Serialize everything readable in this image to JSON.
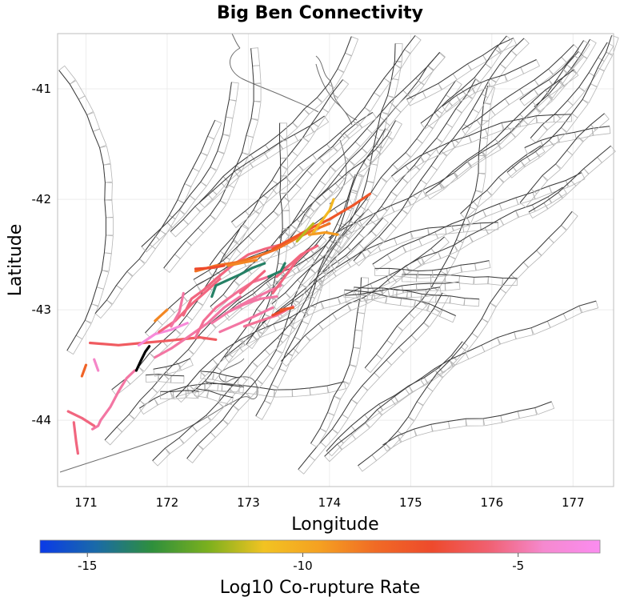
{
  "chart_data": {
    "type": "map",
    "title": "Big Ben Connectivity",
    "xlabel": "Longitude",
    "ylabel": "Latitude",
    "xlim": [
      170.65,
      177.5
    ],
    "ylim": [
      -44.6,
      -40.5
    ],
    "x_ticks": [
      171,
      172,
      173,
      174,
      175,
      176,
      177
    ],
    "y_ticks": [
      -41,
      -42,
      -43,
      -44
    ],
    "x_tick_labels": [
      "171",
      "172",
      "173",
      "174",
      "175",
      "176",
      "177"
    ],
    "y_tick_labels": [
      "-41",
      "-42",
      "-43",
      "-44"
    ],
    "colorbar": {
      "label": "Log10 Co-rupture Rate",
      "range": [
        -16.1,
        -3.1
      ],
      "ticks": [
        -15,
        -10,
        -5
      ],
      "tick_labels": [
        "-15",
        "-10",
        "-5"
      ],
      "colors": [
        "#0a3ae8",
        "#1a6aa8",
        "#2e8f3c",
        "#7bb01e",
        "#f2c322",
        "#f5a021",
        "#f06a25",
        "#ee4a2c",
        "#f06070",
        "#f589cf",
        "#fb8cf0"
      ]
    },
    "source_fault": {
      "name": "Big Ben",
      "color": "#000000",
      "points": [
        [
          171.62,
          -43.55
        ],
        [
          171.67,
          -43.47
        ],
        [
          171.73,
          -43.38
        ],
        [
          171.78,
          -43.33
        ]
      ]
    },
    "ruptures": [
      {
        "log_rate": -6.0,
        "points": [
          [
            171.05,
            -43.3
          ],
          [
            171.4,
            -43.32
          ],
          [
            171.7,
            -43.3
          ],
          [
            172.0,
            -43.28
          ],
          [
            172.4,
            -43.25
          ],
          [
            172.6,
            -43.27
          ]
        ]
      },
      {
        "log_rate": -4.0,
        "points": [
          [
            171.65,
            -43.32
          ],
          [
            171.85,
            -43.22
          ],
          [
            172.05,
            -43.18
          ],
          [
            172.25,
            -43.12
          ]
        ]
      },
      {
        "log_rate": -5.0,
        "points": [
          [
            171.6,
            -43.55
          ],
          [
            171.5,
            -43.62
          ],
          [
            171.4,
            -43.74
          ],
          [
            171.3,
            -43.88
          ],
          [
            171.18,
            -44.0
          ],
          [
            171.15,
            -44.05
          ],
          [
            171.08,
            -44.08
          ]
        ]
      },
      {
        "log_rate": -5.5,
        "points": [
          [
            170.78,
            -43.92
          ],
          [
            170.95,
            -43.98
          ],
          [
            171.1,
            -44.05
          ]
        ]
      },
      {
        "log_rate": -5.5,
        "points": [
          [
            170.85,
            -44.02
          ],
          [
            170.88,
            -44.2
          ],
          [
            170.9,
            -44.3
          ]
        ]
      },
      {
        "log_rate": -8.0,
        "points": [
          [
            171.0,
            -43.5
          ],
          [
            170.95,
            -43.6
          ]
        ]
      },
      {
        "log_rate": -5.0,
        "points": [
          [
            171.85,
            -43.43
          ],
          [
            172.05,
            -43.35
          ],
          [
            172.25,
            -43.25
          ],
          [
            172.5,
            -43.12
          ],
          [
            172.7,
            -42.98
          ],
          [
            172.9,
            -42.88
          ]
        ]
      },
      {
        "log_rate": -5.5,
        "points": [
          [
            171.9,
            -43.2
          ],
          [
            172.1,
            -43.1
          ],
          [
            172.3,
            -42.95
          ],
          [
            172.5,
            -42.82
          ],
          [
            172.65,
            -42.72
          ]
        ]
      },
      {
        "log_rate": -5.5,
        "points": [
          [
            172.2,
            -43.05
          ],
          [
            172.3,
            -42.9
          ],
          [
            172.45,
            -42.82
          ],
          [
            172.6,
            -42.72
          ],
          [
            172.8,
            -42.6
          ],
          [
            173.0,
            -42.5
          ],
          [
            173.2,
            -42.45
          ],
          [
            173.45,
            -42.4
          ]
        ]
      },
      {
        "log_rate": -5.0,
        "points": [
          [
            172.05,
            -43.15
          ],
          [
            172.15,
            -43.02
          ],
          [
            172.2,
            -42.85
          ]
        ]
      },
      {
        "log_rate": -5.2,
        "points": [
          [
            172.35,
            -43.25
          ],
          [
            172.45,
            -43.1
          ],
          [
            172.6,
            -42.98
          ],
          [
            172.75,
            -42.9
          ],
          [
            172.9,
            -42.82
          ],
          [
            173.05,
            -42.75
          ],
          [
            173.25,
            -42.7
          ]
        ]
      },
      {
        "log_rate": -5.0,
        "points": [
          [
            172.55,
            -43.12
          ],
          [
            172.75,
            -43.02
          ],
          [
            172.95,
            -42.95
          ],
          [
            173.15,
            -42.9
          ],
          [
            173.35,
            -42.88
          ]
        ]
      },
      {
        "log_rate": -5.0,
        "points": [
          [
            172.65,
            -43.2
          ],
          [
            172.9,
            -43.12
          ],
          [
            173.1,
            -43.05
          ],
          [
            173.3,
            -42.98
          ]
        ]
      },
      {
        "log_rate": -5.2,
        "points": [
          [
            172.95,
            -43.15
          ],
          [
            173.15,
            -43.1
          ],
          [
            173.35,
            -43.05
          ],
          [
            173.55,
            -42.97
          ]
        ]
      },
      {
        "log_rate": -5.0,
        "points": [
          [
            172.8,
            -43.0
          ],
          [
            173.0,
            -42.92
          ],
          [
            173.2,
            -42.85
          ],
          [
            173.4,
            -42.78
          ]
        ]
      },
      {
        "log_rate": -5.5,
        "points": [
          [
            172.9,
            -42.85
          ],
          [
            173.05,
            -42.75
          ],
          [
            173.2,
            -42.65
          ]
        ]
      },
      {
        "log_rate": -7.0,
        "points": [
          [
            173.3,
            -43.05
          ],
          [
            173.45,
            -43.0
          ]
        ]
      },
      {
        "log_rate": -5.5,
        "points": [
          [
            173.3,
            -42.85
          ],
          [
            173.45,
            -42.7
          ],
          [
            173.6,
            -42.55
          ],
          [
            173.7,
            -42.48
          ]
        ]
      },
      {
        "log_rate": -5.5,
        "points": [
          [
            173.35,
            -42.7
          ],
          [
            173.5,
            -42.6
          ],
          [
            173.65,
            -42.5
          ],
          [
            173.85,
            -42.42
          ]
        ]
      },
      {
        "log_rate": -14.0,
        "points": [
          [
            172.55,
            -42.88
          ],
          [
            172.6,
            -42.78
          ],
          [
            172.75,
            -42.73
          ],
          [
            172.9,
            -42.68
          ],
          [
            173.05,
            -42.62
          ],
          [
            173.2,
            -42.58
          ]
        ]
      },
      {
        "log_rate": -14.0,
        "points": [
          [
            173.25,
            -42.7
          ],
          [
            173.4,
            -42.65
          ],
          [
            173.45,
            -42.58
          ]
        ]
      },
      {
        "log_rate": -8.5,
        "points": [
          [
            172.35,
            -42.65
          ],
          [
            172.6,
            -42.6
          ],
          [
            172.85,
            -42.57
          ],
          [
            173.1,
            -42.52
          ],
          [
            173.35,
            -42.45
          ],
          [
            173.6,
            -42.35
          ],
          [
            173.8,
            -42.28
          ],
          [
            174.0,
            -42.22
          ]
        ]
      },
      {
        "log_rate": -7.5,
        "points": [
          [
            173.3,
            -42.45
          ],
          [
            173.55,
            -42.35
          ],
          [
            173.8,
            -42.25
          ],
          [
            174.0,
            -42.18
          ],
          [
            174.3,
            -42.05
          ],
          [
            174.5,
            -41.95
          ]
        ]
      },
      {
        "log_rate": -10.5,
        "points": [
          [
            173.8,
            -42.3
          ],
          [
            173.9,
            -42.2
          ],
          [
            174.0,
            -42.1
          ],
          [
            174.05,
            -42.0
          ]
        ]
      },
      {
        "log_rate": -11.5,
        "points": [
          [
            173.6,
            -42.38
          ],
          [
            173.72,
            -42.28
          ],
          [
            173.8,
            -42.22
          ]
        ]
      },
      {
        "log_rate": -9.5,
        "points": [
          [
            173.75,
            -42.32
          ],
          [
            173.95,
            -42.3
          ],
          [
            174.1,
            -42.32
          ]
        ]
      },
      {
        "log_rate": -7.0,
        "points": [
          [
            172.35,
            -42.63
          ],
          [
            172.55,
            -42.62
          ],
          [
            172.7,
            -42.6
          ]
        ]
      },
      {
        "log_rate": -9.0,
        "points": [
          [
            172.75,
            -42.6
          ],
          [
            172.95,
            -42.57
          ],
          [
            173.1,
            -42.55
          ]
        ]
      },
      {
        "log_rate": -7.5,
        "points": [
          [
            173.4,
            -43.0
          ],
          [
            173.55,
            -42.98
          ]
        ]
      },
      {
        "log_rate": -9.0,
        "points": [
          [
            171.85,
            -43.1
          ],
          [
            172.0,
            -43.0
          ]
        ]
      },
      {
        "log_rate": -4.5,
        "points": [
          [
            171.1,
            -43.45
          ],
          [
            171.15,
            -43.55
          ]
        ]
      }
    ]
  }
}
